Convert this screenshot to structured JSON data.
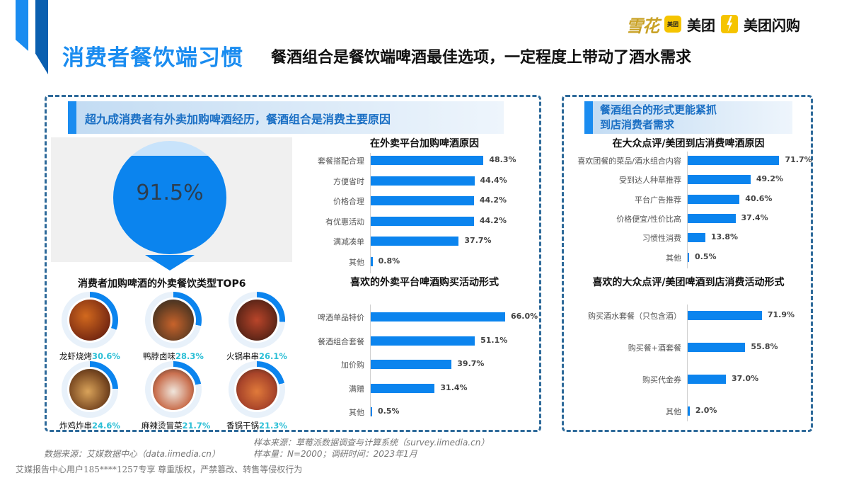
{
  "header": {
    "title": "消费者餐饮端习惯",
    "subtitle": "餐酒组合是餐饮端啤酒最佳选项，一定程度上带动了酒水需求",
    "logos": {
      "xuehua": "雪花",
      "meituan_box": "美团",
      "meituan": "美团",
      "meituan_shangou": "美团闪购"
    }
  },
  "left_panel": {
    "heading": "超九成消费者有外卖加购啤酒经历，餐酒组合是消费主要原因",
    "big_stat": {
      "value": "91.5%",
      "percent": 91.5
    },
    "food_title": "消费者加购啤酒的外卖餐饮类型TOP6",
    "foods": [
      {
        "name": "龙虾烧烤",
        "value": "30.6%",
        "percent": 30.6
      },
      {
        "name": "鸭脖卤味",
        "value": "28.3%",
        "percent": 28.3
      },
      {
        "name": "火锅串串",
        "value": "26.1%",
        "percent": 26.1
      },
      {
        "name": "炸鸡炸串",
        "value": "24.6%",
        "percent": 24.6
      },
      {
        "name": "麻辣烫冒菜",
        "value": "21.7%",
        "percent": 21.7
      },
      {
        "name": "香锅干锅",
        "value": "21.3%",
        "percent": 21.3
      }
    ]
  },
  "right_panel": {
    "heading_line1": "餐酒组合的形式更能紧抓",
    "heading_line2": "到店消费者需求"
  },
  "colors": {
    "accent": "#1a8cf0",
    "bar": "#0b84ee",
    "dash": "#2e6a9a",
    "food_pct": "#2bbfd6",
    "logo_yellow": "#f5c400",
    "xuehua_gold": "#c9a227"
  },
  "chart_data": [
    {
      "type": "bar",
      "orientation": "horizontal",
      "title": "在外卖平台加购啤酒原因",
      "categories": [
        "套餐搭配合理",
        "方便省时",
        "价格合理",
        "有优惠活动",
        "满减凑单",
        "其他"
      ],
      "values": [
        48.3,
        44.4,
        44.2,
        44.2,
        37.7,
        0.8
      ],
      "labels": [
        "48.3%",
        "44.4%",
        "44.2%",
        "44.2%",
        "37.7%",
        "0.8%"
      ],
      "unit": "%"
    },
    {
      "type": "bar",
      "orientation": "horizontal",
      "title": "喜欢的外卖平台啤酒购买活动形式",
      "categories": [
        "啤酒单品特价",
        "餐酒组合套餐",
        "加价购",
        "满赠",
        "其他"
      ],
      "values": [
        66.0,
        51.1,
        39.7,
        31.4,
        0.5
      ],
      "labels": [
        "66.0%",
        "51.1%",
        "39.7%",
        "31.4%",
        "0.5%"
      ],
      "unit": "%"
    },
    {
      "type": "bar",
      "orientation": "horizontal",
      "title": "在大众点评/美团到店消费啤酒原因",
      "categories": [
        "喜欢团餐的菜品/酒水组合内容",
        "受到达人种草推荐",
        "平台广告推荐",
        "价格便宜/性价比高",
        "习惯性消费",
        "其他"
      ],
      "values": [
        71.7,
        49.2,
        40.6,
        37.4,
        13.8,
        0.5
      ],
      "labels": [
        "71.7%",
        "49.2%",
        "40.6%",
        "37.4%",
        "13.8%",
        "0.5%"
      ],
      "unit": "%"
    },
    {
      "type": "bar",
      "orientation": "horizontal",
      "title": "喜欢的大众点评/美团啤酒到店消费活动形式",
      "categories": [
        "购买酒水套餐（只包含酒）",
        "购买餐+酒套餐",
        "购买代金券",
        "其他"
      ],
      "values": [
        71.9,
        55.8,
        37.0,
        2.0
      ],
      "labels": [
        "71.9%",
        "55.8%",
        "37.0%",
        "2.0%"
      ],
      "unit": "%"
    },
    {
      "type": "pie",
      "title": "超九成消费者有外卖加购啤酒经历",
      "categories": [
        "有外卖加购啤酒经历",
        "其他"
      ],
      "values": [
        91.5,
        8.5
      ]
    },
    {
      "type": "pie",
      "title": "消费者加购啤酒的外卖餐饮类型TOP6",
      "categories": [
        "龙虾烧烤",
        "鸭脖卤味",
        "火锅串串",
        "炸鸡炸串",
        "麻辣烫冒菜",
        "香锅干锅"
      ],
      "values": [
        30.6,
        28.3,
        26.1,
        24.6,
        21.7,
        21.3
      ]
    }
  ],
  "footer": {
    "data_source": "数据来源：艾媒数据中心（data.iimedia.cn）",
    "sample_source": "样本来源：草莓派数据调查与计算系统（survey.iimedia.cn）",
    "sample_size": "样本量：N=2000；调研时间：2023年1月",
    "copyright": "艾媒报告中心用户185****1257专享 尊重版权，严禁篡改、转售等侵权行为"
  }
}
